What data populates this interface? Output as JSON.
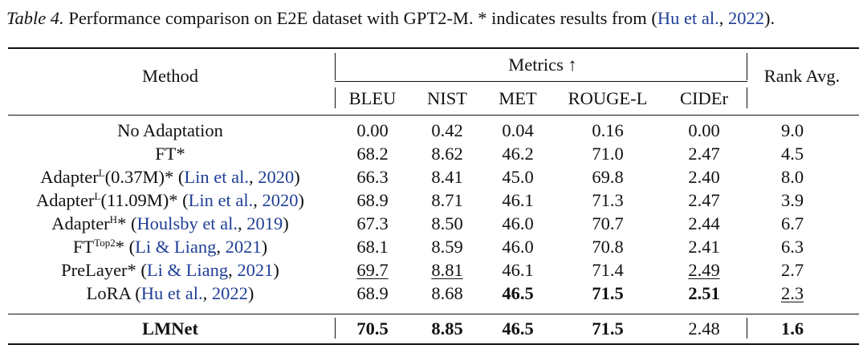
{
  "caption": {
    "label": "Table 4.",
    "text": " Performance comparison on E2E dataset with GPT2-M. * indicates results from (",
    "cite_authors": "Hu et al.",
    "cite_sep": ", ",
    "cite_year": "2022",
    "end": ")."
  },
  "header": {
    "method": "Method",
    "metrics": "Metrics ↑",
    "rank": "Rank Avg.",
    "columns": [
      "BLEU",
      "NIST",
      "MET",
      "ROUGE-L",
      "CIDEr"
    ]
  },
  "rows": [
    {
      "method": {
        "base": "No Adaptation",
        "sup": "",
        "suffix": "",
        "cite_authors": "",
        "cite_year": ""
      },
      "cells": [
        {
          "v": "0.00",
          "b": false,
          "u": false
        },
        {
          "v": "0.42",
          "b": false,
          "u": false
        },
        {
          "v": "0.04",
          "b": false,
          "u": false
        },
        {
          "v": "0.16",
          "b": false,
          "u": false
        },
        {
          "v": "0.00",
          "b": false,
          "u": false
        },
        {
          "v": "9.0",
          "b": false,
          "u": false
        }
      ]
    },
    {
      "method": {
        "base": "FT*",
        "sup": "",
        "suffix": "",
        "cite_authors": "",
        "cite_year": ""
      },
      "cells": [
        {
          "v": "68.2",
          "b": false,
          "u": false
        },
        {
          "v": "8.62",
          "b": false,
          "u": false
        },
        {
          "v": "46.2",
          "b": false,
          "u": false
        },
        {
          "v": "71.0",
          "b": false,
          "u": false
        },
        {
          "v": "2.47",
          "b": false,
          "u": false
        },
        {
          "v": "4.5",
          "b": false,
          "u": false
        }
      ]
    },
    {
      "method": {
        "base": "Adapter",
        "sup": "L",
        "suffix": "(0.37M)* ",
        "cite_authors": "Lin et al.",
        "cite_year": "2020"
      },
      "cells": [
        {
          "v": "66.3",
          "b": false,
          "u": false
        },
        {
          "v": "8.41",
          "b": false,
          "u": false
        },
        {
          "v": "45.0",
          "b": false,
          "u": false
        },
        {
          "v": "69.8",
          "b": false,
          "u": false
        },
        {
          "v": "2.40",
          "b": false,
          "u": false
        },
        {
          "v": "8.0",
          "b": false,
          "u": false
        }
      ]
    },
    {
      "method": {
        "base": "Adapter",
        "sup": "L",
        "suffix": "(11.09M)* ",
        "cite_authors": "Lin et al.",
        "cite_year": "2020"
      },
      "cells": [
        {
          "v": "68.9",
          "b": false,
          "u": false
        },
        {
          "v": "8.71",
          "b": false,
          "u": false
        },
        {
          "v": "46.1",
          "b": false,
          "u": false
        },
        {
          "v": "71.3",
          "b": false,
          "u": false
        },
        {
          "v": "2.47",
          "b": false,
          "u": false
        },
        {
          "v": "3.9",
          "b": false,
          "u": false
        }
      ]
    },
    {
      "method": {
        "base": "Adapter",
        "sup": "H",
        "suffix": "* ",
        "cite_authors": "Houlsby et al.",
        "cite_year": "2019"
      },
      "cells": [
        {
          "v": "67.3",
          "b": false,
          "u": false
        },
        {
          "v": "8.50",
          "b": false,
          "u": false
        },
        {
          "v": "46.0",
          "b": false,
          "u": false
        },
        {
          "v": "70.7",
          "b": false,
          "u": false
        },
        {
          "v": "2.44",
          "b": false,
          "u": false
        },
        {
          "v": "6.7",
          "b": false,
          "u": false
        }
      ]
    },
    {
      "method": {
        "base": "FT",
        "sup": "Top2",
        "suffix": "* ",
        "cite_authors": "Li & Liang",
        "cite_year": "2021"
      },
      "cells": [
        {
          "v": "68.1",
          "b": false,
          "u": false
        },
        {
          "v": "8.59",
          "b": false,
          "u": false
        },
        {
          "v": "46.0",
          "b": false,
          "u": false
        },
        {
          "v": "70.8",
          "b": false,
          "u": false
        },
        {
          "v": "2.41",
          "b": false,
          "u": false
        },
        {
          "v": "6.3",
          "b": false,
          "u": false
        }
      ]
    },
    {
      "method": {
        "base": "PreLayer*",
        "sup": "",
        "suffix": " ",
        "cite_authors": "Li & Liang",
        "cite_year": "2021"
      },
      "cells": [
        {
          "v": "69.7",
          "b": false,
          "u": true
        },
        {
          "v": "8.81",
          "b": false,
          "u": true
        },
        {
          "v": "46.1",
          "b": false,
          "u": false
        },
        {
          "v": "71.4",
          "b": false,
          "u": false
        },
        {
          "v": "2.49",
          "b": false,
          "u": true
        },
        {
          "v": "2.7",
          "b": false,
          "u": false
        }
      ]
    },
    {
      "method": {
        "base": "LoRA",
        "sup": "",
        "suffix": " ",
        "cite_authors": "Hu et al.",
        "cite_year": "2022"
      },
      "cells": [
        {
          "v": "68.9",
          "b": false,
          "u": false
        },
        {
          "v": "8.68",
          "b": false,
          "u": false
        },
        {
          "v": "46.5",
          "b": true,
          "u": false
        },
        {
          "v": "71.5",
          "b": true,
          "u": false
        },
        {
          "v": "2.51",
          "b": true,
          "u": false
        },
        {
          "v": "2.3",
          "b": false,
          "u": true
        }
      ]
    }
  ],
  "ours": {
    "method": "LMNet",
    "cells": [
      {
        "v": "70.5",
        "b": true,
        "u": false
      },
      {
        "v": "8.85",
        "b": true,
        "u": false
      },
      {
        "v": "46.5",
        "b": true,
        "u": false
      },
      {
        "v": "71.5",
        "b": true,
        "u": false
      },
      {
        "v": "2.48",
        "b": false,
        "u": false
      },
      {
        "v": "1.6",
        "b": true,
        "u": false
      }
    ]
  }
}
